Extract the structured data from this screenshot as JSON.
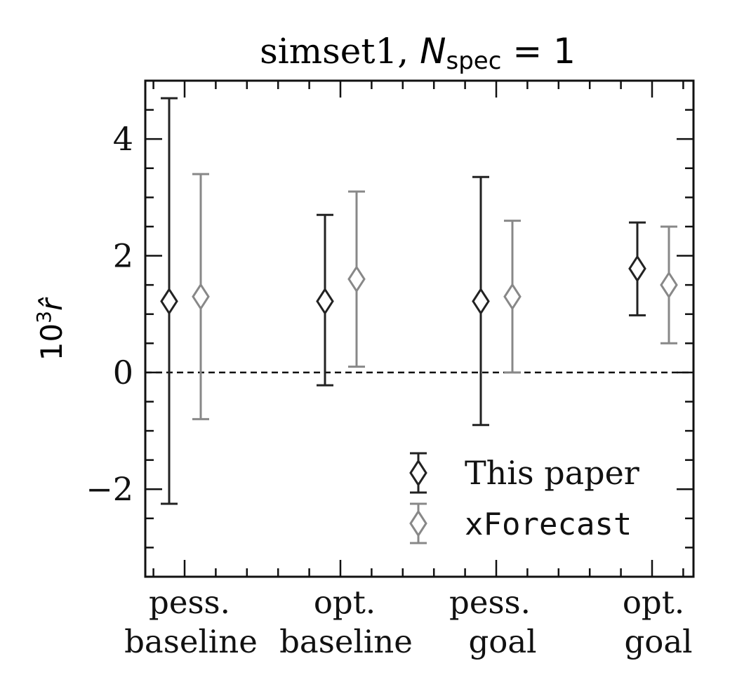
{
  "chart_data": {
    "type": "scatter",
    "title_prefix": "simset1, ",
    "title_var": "N",
    "title_sub": "spec",
    "title_suffix": " = 1",
    "ylabel_base": "10",
    "ylabel_exp": "3",
    "ylabel_var": "r̂",
    "categories": [
      {
        "line1": "pess.",
        "line2": "baseline"
      },
      {
        "line1": "opt.",
        "line2": "baseline"
      },
      {
        "line1": "pess.",
        "line2": "goal"
      },
      {
        "line1": "opt.",
        "line2": "goal"
      }
    ],
    "ylim": [
      -3.5,
      5
    ],
    "yticks": [
      -2,
      0,
      2,
      4
    ],
    "ytick_labels": [
      "−2",
      "0",
      "2",
      "4"
    ],
    "reference_line_y": 0,
    "legend_position": "lower-right",
    "series": [
      {
        "name": "This paper",
        "color": "#222222",
        "points": [
          {
            "y": 1.22,
            "lo": -2.25,
            "hi": 4.7
          },
          {
            "y": 1.22,
            "lo": -0.22,
            "hi": 2.7
          },
          {
            "y": 1.22,
            "lo": -0.9,
            "hi": 3.35
          },
          {
            "y": 1.78,
            "lo": 0.98,
            "hi": 2.57
          }
        ]
      },
      {
        "name": "xForecast",
        "color": "#888888",
        "points": [
          {
            "y": 1.3,
            "lo": -0.8,
            "hi": 3.4
          },
          {
            "y": 1.6,
            "lo": 0.1,
            "hi": 3.1
          },
          {
            "y": 1.3,
            "lo": 0.0,
            "hi": 2.6
          },
          {
            "y": 1.5,
            "lo": 0.5,
            "hi": 2.5
          }
        ]
      }
    ]
  }
}
